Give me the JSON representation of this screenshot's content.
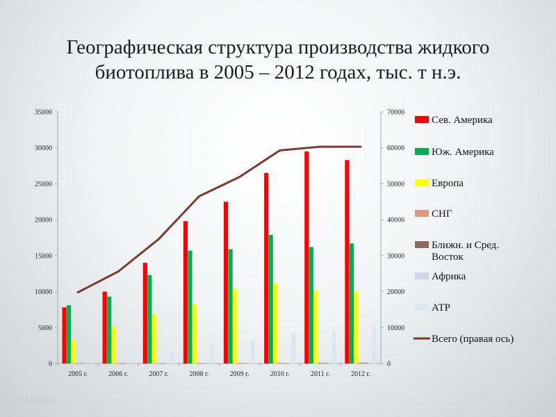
{
  "slide": {
    "title": "Географическая структура производства жидкого биотоплива в 2005 – 2012 годах, тыс. т н.э.",
    "date": "06.06.2014"
  },
  "chart_data": {
    "type": "bar",
    "title": "Географическая структура производства жидкого биотоплива в 2005 – 2012 годах, тыс. т н.э.",
    "categories": [
      "2005 г.",
      "2006 г.",
      "2007 г.",
      "2008 г.",
      "2009 г.",
      "2010 г.",
      "2011 г.",
      "2012 г."
    ],
    "ylim": [
      0,
      35000
    ],
    "y_ticks": [
      0,
      5000,
      10000,
      15000,
      20000,
      25000,
      30000,
      35000
    ],
    "y2lim": [
      0,
      70000
    ],
    "y2_ticks": [
      0,
      10000,
      20000,
      30000,
      40000,
      50000,
      60000,
      70000
    ],
    "legend_position": "right",
    "grid": false,
    "series": [
      {
        "name": "Сев. Америка",
        "color": "#ff0000",
        "axis": "left",
        "type": "bar",
        "values": [
          7800,
          10000,
          14000,
          19800,
          22500,
          26500,
          29500,
          28300
        ]
      },
      {
        "name": "Юж. Америка",
        "color": "#00b050",
        "axis": "left",
        "type": "bar",
        "values": [
          8100,
          9300,
          12300,
          15700,
          15900,
          17900,
          16200,
          16700
        ]
      },
      {
        "name": "Европа",
        "color": "#ffff00",
        "axis": "left",
        "type": "bar",
        "values": [
          3300,
          5100,
          6900,
          8300,
          10400,
          11200,
          10200,
          10000
        ]
      },
      {
        "name": "СНГ",
        "color": "#d99a7a",
        "axis": "left",
        "type": "bar",
        "values": [
          20,
          30,
          50,
          80,
          100,
          120,
          150,
          150
        ]
      },
      {
        "name": "Ближн. и Сред. Восток",
        "color": "#8c6a5f",
        "axis": "left",
        "type": "bar",
        "values": [
          10,
          20,
          30,
          40,
          50,
          60,
          70,
          80
        ]
      },
      {
        "name": "Африка",
        "color": "#d8d4e8",
        "axis": "left",
        "type": "bar",
        "values": [
          30,
          40,
          60,
          80,
          100,
          130,
          150,
          170
        ]
      },
      {
        "name": "АТР",
        "color": "#dde6ee",
        "axis": "left",
        "type": "bar",
        "values": [
          800,
          1300,
          1700,
          2900,
          3300,
          4100,
          4400,
          5200
        ]
      },
      {
        "name": "Всего (правая ось)",
        "color": "#7a3b33",
        "axis": "right",
        "type": "line",
        "values": [
          19800,
          25600,
          34600,
          46500,
          51900,
          59300,
          60300,
          60300
        ]
      }
    ]
  }
}
